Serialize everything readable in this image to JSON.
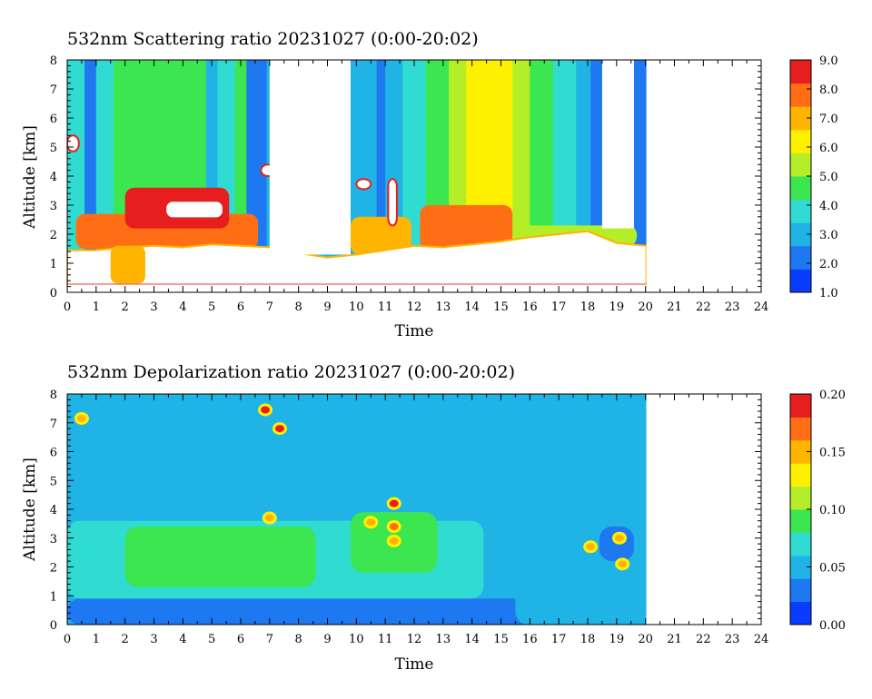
{
  "colormap": [
    "#0a3cff",
    "#1e78f0",
    "#20b4e6",
    "#30dcd2",
    "#3ce650",
    "#b4ee28",
    "#fff000",
    "#ffb400",
    "#ff6e14",
    "#e61e1e"
  ],
  "no_data_color": "#ffffff",
  "chart_data": [
    {
      "type": "heatmap",
      "title": "532nm Scattering ratio  20231027 (0:00-20:02)",
      "xlabel": "Time",
      "ylabel": "Altitude [km]",
      "xlim": [
        0,
        24
      ],
      "ylim": [
        0,
        8
      ],
      "x_ticks": [
        "0",
        "1",
        "2",
        "3",
        "4",
        "5",
        "6",
        "7",
        "8",
        "9",
        "10",
        "11",
        "12",
        "13",
        "14",
        "15",
        "16",
        "17",
        "18",
        "19",
        "20",
        "21",
        "22",
        "23",
        "24"
      ],
      "y_ticks": [
        "0",
        "1",
        "2",
        "3",
        "4",
        "5",
        "6",
        "7",
        "8"
      ],
      "data_extent_hours": [
        0,
        20.03
      ],
      "colorbar": {
        "min": 1.0,
        "max": 9.0,
        "tick_values": [
          1.0,
          2.0,
          3.0,
          4.0,
          5.0,
          6.0,
          7.0,
          8.0,
          9.0
        ],
        "tick_labels": [
          "1.0",
          "2.0",
          "3.0",
          "4.0",
          "5.0",
          "6.0",
          "7.0",
          "8.0",
          "9.0"
        ]
      },
      "background_by_time": [
        {
          "t0": 0.0,
          "t1": 0.6,
          "value": 4.0
        },
        {
          "t0": 0.6,
          "t1": 1.0,
          "value": 2.3
        },
        {
          "t0": 1.0,
          "t1": 1.6,
          "value": 4.1
        },
        {
          "t0": 1.6,
          "t1": 2.6,
          "value": 4.6
        },
        {
          "t0": 2.6,
          "t1": 3.3,
          "value": 4.3
        },
        {
          "t0": 3.3,
          "t1": 4.0,
          "value": 4.5
        },
        {
          "t0": 4.0,
          "t1": 4.8,
          "value": 4.2
        },
        {
          "t0": 4.8,
          "t1": 5.2,
          "value": 3.1
        },
        {
          "t0": 5.2,
          "t1": 5.8,
          "value": 3.8
        },
        {
          "t0": 5.8,
          "t1": 6.2,
          "value": 4.5
        },
        {
          "t0": 6.2,
          "t1": 6.9,
          "value": 2.0
        },
        {
          "t0": 6.9,
          "t1": 10.3,
          "value": 2.6
        },
        {
          "t0": 10.3,
          "t1": 10.7,
          "value": 3.2
        },
        {
          "t0": 10.7,
          "t1": 11.0,
          "value": 2.3
        },
        {
          "t0": 11.0,
          "t1": 11.6,
          "value": 3.0
        },
        {
          "t0": 11.6,
          "t1": 12.4,
          "value": 3.6
        },
        {
          "t0": 12.4,
          "t1": 13.2,
          "value": 4.2
        },
        {
          "t0": 13.2,
          "t1": 13.8,
          "value": 5.3
        },
        {
          "t0": 13.8,
          "t1": 15.4,
          "value": 6.0
        },
        {
          "t0": 15.4,
          "t1": 16.0,
          "value": 5.2
        },
        {
          "t0": 16.0,
          "t1": 16.8,
          "value": 4.4
        },
        {
          "t0": 16.8,
          "t1": 17.6,
          "value": 3.8
        },
        {
          "t0": 17.6,
          "t1": 18.1,
          "value": 3.2
        },
        {
          "t0": 18.1,
          "t1": 18.5,
          "value": 2.2
        },
        {
          "t0": 19.6,
          "t1": 20.03,
          "value": 2.0
        }
      ],
      "boundary_layer_top_km": [
        [
          0.0,
          1.45
        ],
        [
          1.0,
          1.45
        ],
        [
          2.0,
          1.55
        ],
        [
          3.0,
          1.6
        ],
        [
          4.0,
          1.55
        ],
        [
          5.0,
          1.65
        ],
        [
          6.0,
          1.6
        ],
        [
          7.0,
          1.55
        ],
        [
          8.0,
          1.35
        ],
        [
          9.0,
          1.2
        ],
        [
          10.0,
          1.3
        ],
        [
          11.0,
          1.45
        ],
        [
          12.0,
          1.6
        ],
        [
          13.0,
          1.55
        ],
        [
          14.0,
          1.65
        ],
        [
          15.0,
          1.75
        ],
        [
          16.0,
          1.9
        ],
        [
          17.0,
          2.0
        ],
        [
          18.0,
          2.1
        ],
        [
          19.0,
          1.7
        ],
        [
          20.03,
          1.6
        ]
      ],
      "aerosol_layers": [
        {
          "t0": 0.3,
          "t1": 6.6,
          "z0": 1.5,
          "z1": 2.7,
          "value": 7.6
        },
        {
          "t0": 2.0,
          "t1": 5.6,
          "z0": 2.2,
          "z1": 3.6,
          "value": 8.3
        },
        {
          "t0": 1.5,
          "t1": 2.7,
          "z0": 0.3,
          "z1": 1.6,
          "value": 7.2
        },
        {
          "t0": 9.8,
          "t1": 11.9,
          "z0": 1.3,
          "z1": 2.6,
          "value": 7.0
        },
        {
          "t0": 12.2,
          "t1": 15.4,
          "z0": 1.5,
          "z1": 3.0,
          "value": 7.8
        },
        {
          "t0": 15.4,
          "t1": 19.7,
          "z0": 1.6,
          "z1": 2.3,
          "value": 5.5
        }
      ],
      "saturated_regions": [
        {
          "t0": 3.4,
          "t1": 5.4,
          "z0": 2.55,
          "z1": 3.15
        },
        {
          "t0": 0.0,
          "t1": 0.4,
          "z0": 4.85,
          "z1": 5.4
        },
        {
          "t0": 6.7,
          "t1": 7.4,
          "z0": 4.0,
          "z1": 4.4
        },
        {
          "t0": 10.0,
          "t1": 10.5,
          "z0": 3.55,
          "z1": 3.9
        },
        {
          "t0": 11.1,
          "t1": 11.4,
          "z0": 2.3,
          "z1": 3.9
        }
      ],
      "no_data_regions": [
        {
          "t0": 7.0,
          "t1": 9.8,
          "z0": 1.3,
          "z1": 8.0
        },
        {
          "t0": 18.5,
          "t1": 19.6,
          "z0": 2.2,
          "z1": 8.0
        },
        {
          "t0": 0.0,
          "t1": 20.03,
          "z0": 0.0,
          "z1": 0.3
        },
        {
          "t0": 20.03,
          "t1": 24.0,
          "z0": 0.0,
          "z1": 8.0
        }
      ],
      "surface_line_km": 0.28
    },
    {
      "type": "heatmap",
      "title": "532nm Depolarization ratio  20231027 (0:00-20:02)",
      "xlabel": "Time",
      "ylabel": "Altitude [km]",
      "xlim": [
        0,
        24
      ],
      "ylim": [
        0,
        8
      ],
      "x_ticks": [
        "0",
        "1",
        "2",
        "3",
        "4",
        "5",
        "6",
        "7",
        "8",
        "9",
        "10",
        "11",
        "12",
        "13",
        "14",
        "15",
        "16",
        "17",
        "18",
        "19",
        "20",
        "21",
        "22",
        "23",
        "24"
      ],
      "y_ticks": [
        "0",
        "1",
        "2",
        "3",
        "4",
        "5",
        "6",
        "7",
        "8"
      ],
      "data_extent_hours": [
        0,
        20.03
      ],
      "colorbar": {
        "min": 0.0,
        "max": 0.2,
        "tick_values": [
          0.0,
          0.05,
          0.1,
          0.15,
          0.2
        ],
        "tick_labels": [
          "0.00",
          "0.05",
          "0.10",
          "0.15",
          "0.20"
        ]
      },
      "background_value": 0.052,
      "layers": [
        {
          "t0": 0.0,
          "t1": 20.03,
          "z0": 0.0,
          "z1": 0.9,
          "value": 0.035
        },
        {
          "t0": 0.0,
          "t1": 14.4,
          "z0": 0.9,
          "z1": 3.6,
          "value": 0.068
        },
        {
          "t0": 2.0,
          "t1": 8.6,
          "z0": 1.3,
          "z1": 3.4,
          "value": 0.083
        },
        {
          "t0": 9.8,
          "t1": 12.8,
          "z0": 1.8,
          "z1": 3.9,
          "value": 0.085
        },
        {
          "t0": 15.5,
          "t1": 20.03,
          "z0": 0.0,
          "z1": 2.5,
          "value": 0.045
        },
        {
          "t0": 18.4,
          "t1": 19.6,
          "z0": 2.2,
          "z1": 3.4,
          "value": 0.022
        }
      ],
      "hot_spots": [
        {
          "t": 0.5,
          "z": 7.15,
          "value": 0.16
        },
        {
          "t": 6.85,
          "z": 7.45,
          "value": 0.2
        },
        {
          "t": 7.35,
          "z": 6.8,
          "value": 0.19
        },
        {
          "t": 7.0,
          "z": 3.7,
          "value": 0.15
        },
        {
          "t": 10.5,
          "z": 3.55,
          "value": 0.15
        },
        {
          "t": 11.3,
          "z": 4.2,
          "value": 0.18
        },
        {
          "t": 11.3,
          "z": 3.4,
          "value": 0.17
        },
        {
          "t": 11.3,
          "z": 2.9,
          "value": 0.16
        },
        {
          "t": 18.1,
          "z": 2.7,
          "value": 0.15
        },
        {
          "t": 19.1,
          "z": 3.0,
          "value": 0.14
        },
        {
          "t": 19.2,
          "z": 2.1,
          "value": 0.15
        }
      ],
      "no_data_regions": [
        {
          "t0": 20.03,
          "t1": 24.0,
          "z0": 0.0,
          "z1": 8.0
        }
      ]
    }
  ]
}
